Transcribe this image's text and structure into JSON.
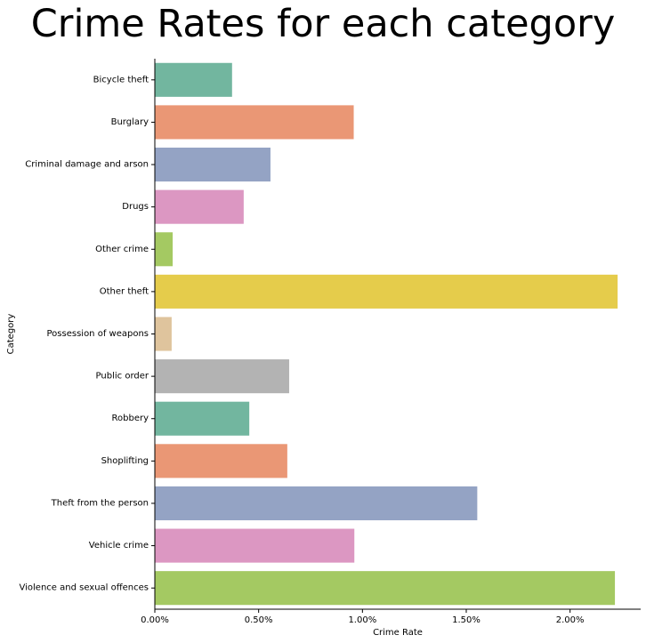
{
  "chart_data": {
    "type": "bar",
    "orientation": "horizontal",
    "title": "Crime Rates for each category",
    "xlabel": "Crime Rate",
    "ylabel": "Category",
    "xlim": [
      0,
      0.0234
    ],
    "xticks": [
      0,
      0.005,
      0.01,
      0.015,
      0.02
    ],
    "xtick_labels": [
      "0.00%",
      "0.50%",
      "1.00%",
      "1.50%",
      "2.00%"
    ],
    "grid": false,
    "categories": [
      "Bicycle theft",
      "Burglary",
      "Criminal damage and arson",
      "Drugs",
      "Other crime",
      "Other theft",
      "Possession of weapons",
      "Public order",
      "Robbery",
      "Shoplifting",
      "Theft from the person",
      "Vehicle crime",
      "Violence and sexual offences"
    ],
    "values": [
      0.00372,
      0.00958,
      0.00557,
      0.00428,
      0.00086,
      0.02229,
      0.00081,
      0.00647,
      0.00455,
      0.00638,
      0.01553,
      0.00961,
      0.02216
    ],
    "colors": [
      "#72b69f",
      "#ea9775",
      "#94a3c4",
      "#dc97c2",
      "#a4c962",
      "#e5cc4b",
      "#dfc49d",
      "#b3b3b3",
      "#72b69f",
      "#ea9775",
      "#94a3c4",
      "#dc97c2",
      "#a4c962"
    ]
  }
}
